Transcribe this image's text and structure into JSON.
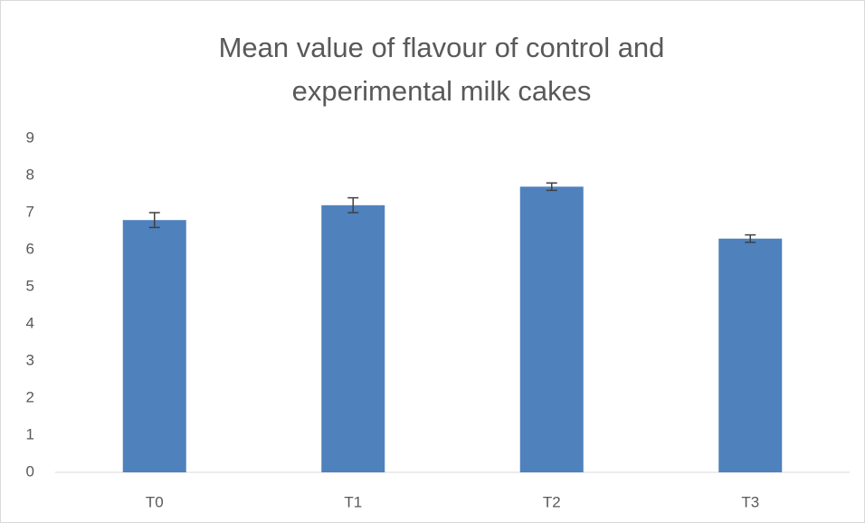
{
  "chart_data": {
    "type": "bar",
    "title": [
      "Mean value of flavour of control and",
      "experimental milk cakes"
    ],
    "categories": [
      "T0",
      "T1",
      "T2",
      "T3"
    ],
    "values": [
      6.8,
      7.2,
      7.7,
      6.3
    ],
    "errors": [
      0.2,
      0.2,
      0.1,
      0.1
    ],
    "color": "#4f81bd",
    "ylim": [
      0,
      9
    ],
    "yticks": [
      0,
      1,
      2,
      3,
      4,
      5,
      6,
      7,
      8,
      9
    ],
    "grid": false
  }
}
